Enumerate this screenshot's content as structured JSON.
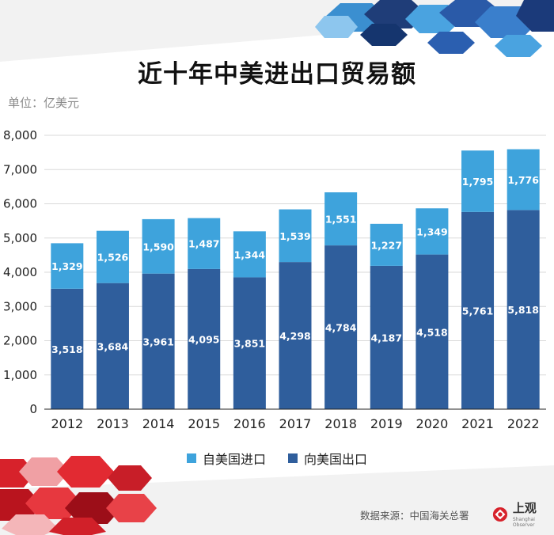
{
  "header": {
    "title": "近十年中美进出口贸易额",
    "unit": "单位：亿美元"
  },
  "legend": [
    {
      "label": "自美国进口",
      "color": "#3ea3dc"
    },
    {
      "label": "向美国出口",
      "color": "#2f5e9c"
    }
  ],
  "footer": {
    "source": "数据来源：中国海关总署",
    "logo_text": "上观",
    "logo_sub": "Shanghai Observer"
  },
  "chart_data": {
    "type": "bar",
    "stacked": true,
    "title": "近十年中美进出口贸易额",
    "ylabel": "单位：亿美元",
    "xlabel": "",
    "ylim": [
      0,
      8000
    ],
    "yticks": [
      0,
      1000,
      2000,
      3000,
      4000,
      5000,
      6000,
      7000,
      8000
    ],
    "ytick_labels": [
      "0",
      "1,000",
      "2,000",
      "3,000",
      "4,000",
      "5,000",
      "6,000",
      "7,000",
      "8,000"
    ],
    "grid": true,
    "categories": [
      "2012",
      "2013",
      "2014",
      "2015",
      "2016",
      "2017",
      "2018",
      "2019",
      "2020",
      "2021",
      "2022"
    ],
    "series": [
      {
        "name": "向美国出口",
        "color": "#2f5e9c",
        "values": [
          3518,
          3684,
          3961,
          4095,
          3851,
          4298,
          4784,
          4187,
          4518,
          5761,
          5818
        ],
        "labels": [
          "3,518",
          "3,684",
          "3,961",
          "4,095",
          "3,851",
          "4,298",
          "4,784",
          "4,187",
          "4,518",
          "5,761",
          "5,818"
        ]
      },
      {
        "name": "自美国进口",
        "color": "#3ea3dc",
        "values": [
          1329,
          1526,
          1590,
          1487,
          1344,
          1539,
          1551,
          1227,
          1349,
          1795,
          1776
        ],
        "labels": [
          "1,329",
          "1,526",
          "1,590",
          "1,487",
          "1,344",
          "1,539",
          "1,551",
          "1,227",
          "1,349",
          "1,795",
          "1,776"
        ]
      }
    ]
  }
}
